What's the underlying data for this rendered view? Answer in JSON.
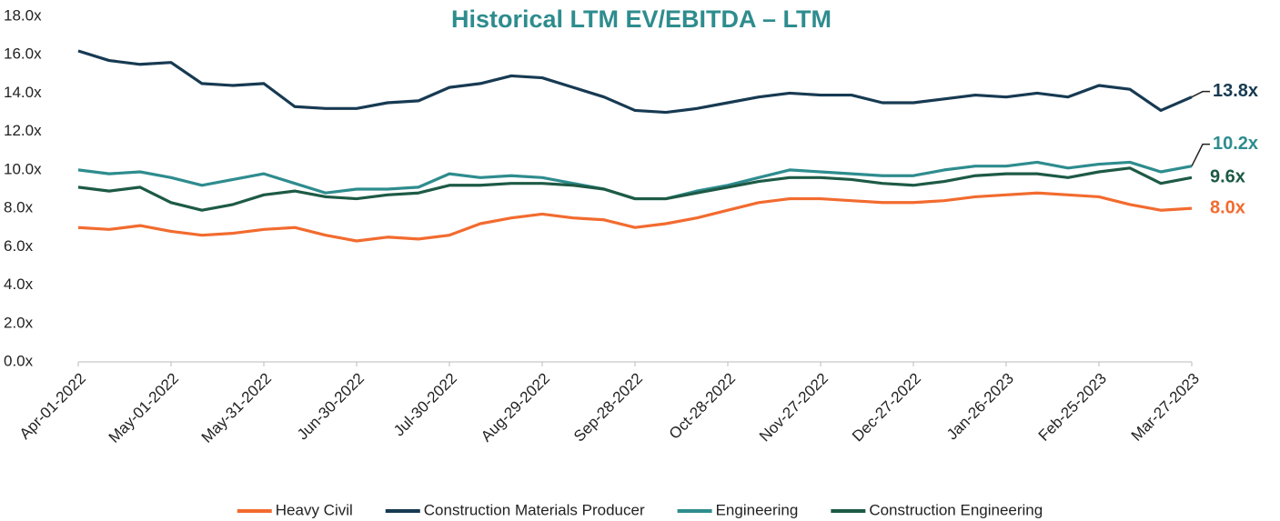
{
  "chart_data": {
    "type": "line",
    "title": "Historical LTM EV/EBITDA – LTM",
    "x": [
      "2022-04-01",
      "2022-04-11",
      "2022-04-21",
      "2022-05-01",
      "2022-05-11",
      "2022-05-21",
      "2022-05-31",
      "2022-06-10",
      "2022-06-20",
      "2022-06-30",
      "2022-07-10",
      "2022-07-20",
      "2022-07-30",
      "2022-08-09",
      "2022-08-19",
      "2022-08-29",
      "2022-09-08",
      "2022-09-18",
      "2022-09-28",
      "2022-10-08",
      "2022-10-18",
      "2022-10-28",
      "2022-11-07",
      "2022-11-17",
      "2022-11-27",
      "2022-12-07",
      "2022-12-17",
      "2022-12-27",
      "2023-01-06",
      "2023-01-16",
      "2023-01-26",
      "2023-02-05",
      "2023-02-15",
      "2023-02-25",
      "2023-03-07",
      "2023-03-17",
      "2023-03-27"
    ],
    "series": [
      {
        "name": "Heavy Civil",
        "color": "#f26b2f",
        "end_label": "8.0x",
        "values": [
          7.0,
          6.9,
          7.1,
          6.8,
          6.6,
          6.7,
          6.9,
          7.0,
          6.6,
          6.3,
          6.5,
          6.4,
          6.6,
          7.2,
          7.5,
          7.7,
          7.5,
          7.4,
          7.0,
          7.2,
          7.5,
          7.9,
          8.3,
          8.5,
          8.5,
          8.4,
          8.3,
          8.3,
          8.4,
          8.6,
          8.7,
          8.8,
          8.7,
          8.6,
          8.2,
          7.9,
          8.0
        ]
      },
      {
        "name": "Construction Materials Producer",
        "color": "#173a52",
        "end_label": "13.8x",
        "values": [
          16.2,
          15.7,
          15.5,
          15.6,
          14.5,
          14.4,
          14.5,
          13.3,
          13.2,
          13.2,
          13.5,
          13.6,
          14.3,
          14.5,
          14.9,
          14.8,
          14.3,
          13.8,
          13.1,
          13.0,
          13.2,
          13.5,
          13.8,
          14.0,
          13.9,
          13.9,
          13.5,
          13.5,
          13.7,
          13.9,
          13.8,
          14.0,
          13.8,
          14.4,
          14.2,
          13.1,
          13.8
        ]
      },
      {
        "name": "Engineering",
        "color": "#2e8c8e",
        "end_label": "10.2x",
        "values": [
          10.0,
          9.8,
          9.9,
          9.6,
          9.2,
          9.5,
          9.8,
          9.3,
          8.8,
          9.0,
          9.0,
          9.1,
          9.8,
          9.6,
          9.7,
          9.6,
          9.3,
          9.0,
          8.5,
          8.5,
          8.9,
          9.2,
          9.6,
          10.0,
          9.9,
          9.8,
          9.7,
          9.7,
          10.0,
          10.2,
          10.2,
          10.4,
          10.1,
          10.3,
          10.4,
          9.9,
          10.2
        ]
      },
      {
        "name": "Construction Engineering",
        "color": "#1d5a45",
        "end_label": "9.6x",
        "values": [
          9.1,
          8.9,
          9.1,
          8.3,
          7.9,
          8.2,
          8.7,
          8.9,
          8.6,
          8.5,
          8.7,
          8.8,
          9.2,
          9.2,
          9.3,
          9.3,
          9.2,
          9.0,
          8.5,
          8.5,
          8.8,
          9.1,
          9.4,
          9.6,
          9.6,
          9.5,
          9.3,
          9.2,
          9.4,
          9.7,
          9.8,
          9.8,
          9.6,
          9.9,
          10.1,
          9.3,
          9.6
        ]
      }
    ],
    "xlim": [
      "2022-04-01",
      "2023-03-27"
    ],
    "xticks": [
      {
        "value": "2022-04-01",
        "label": "Apr-01-2022"
      },
      {
        "value": "2022-05-01",
        "label": "May-01-2022"
      },
      {
        "value": "2022-05-31",
        "label": "May-31-2022"
      },
      {
        "value": "2022-06-30",
        "label": "Jun-30-2022"
      },
      {
        "value": "2022-07-30",
        "label": "Jul-30-2022"
      },
      {
        "value": "2022-08-29",
        "label": "Aug-29-2022"
      },
      {
        "value": "2022-09-28",
        "label": "Sep-28-2022"
      },
      {
        "value": "2022-10-28",
        "label": "Oct-28-2022"
      },
      {
        "value": "2022-11-27",
        "label": "Nov-27-2022"
      },
      {
        "value": "2022-12-27",
        "label": "Dec-27-2022"
      },
      {
        "value": "2023-01-26",
        "label": "Jan-26-2023"
      },
      {
        "value": "2023-02-25",
        "label": "Feb-25-2023"
      },
      {
        "value": "2023-03-27",
        "label": "Mar-27-2023"
      }
    ],
    "ylim": [
      0,
      18
    ],
    "yticks": [
      {
        "value": 0,
        "label": "0.0x"
      },
      {
        "value": 2,
        "label": "2.0x"
      },
      {
        "value": 4,
        "label": "4.0x"
      },
      {
        "value": 6,
        "label": "6.0x"
      },
      {
        "value": 8,
        "label": "8.0x"
      },
      {
        "value": 10,
        "label": "10.0x"
      },
      {
        "value": 12,
        "label": "12.0x"
      },
      {
        "value": 14,
        "label": "14.0x"
      },
      {
        "value": 16,
        "label": "16.0x"
      },
      {
        "value": 18,
        "label": "18.0x"
      }
    ],
    "legend": "bottom"
  }
}
